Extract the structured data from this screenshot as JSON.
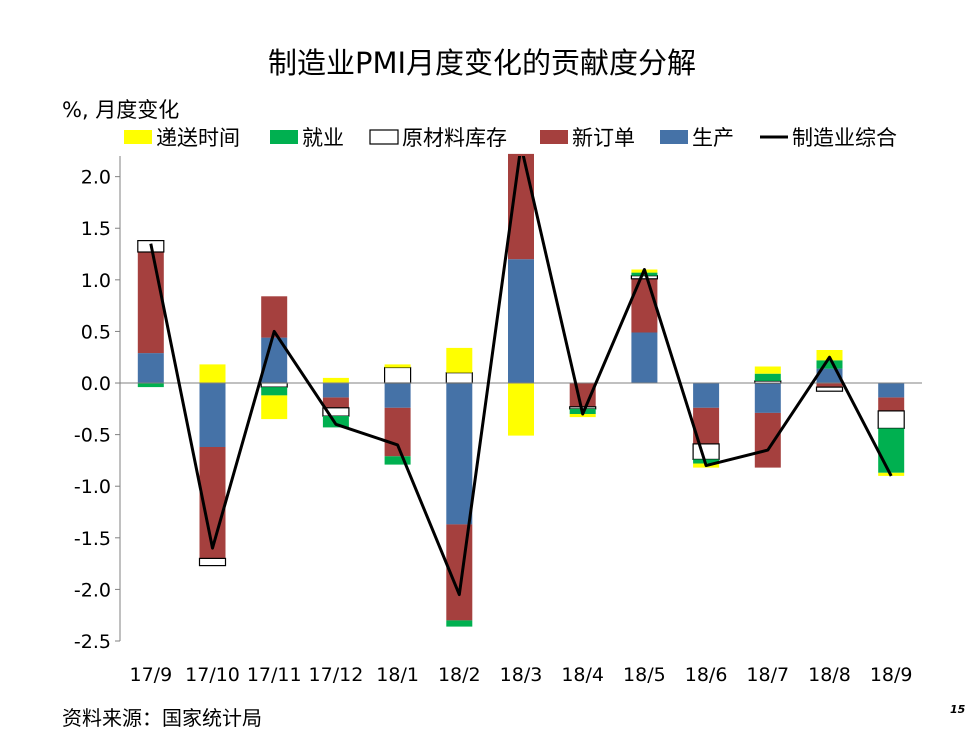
{
  "page": {
    "source": "资料来源：国家统计局",
    "page_number": "15"
  },
  "chart_data": {
    "type": "bar",
    "stacked": true,
    "title": "制造业PMI月度变化的贡献度分解",
    "ylabel": "%, 月度变化",
    "xlabel": "",
    "ylim": [
      -2.5,
      2.2
    ],
    "yticks": [
      "-2.5",
      "-2.0",
      "-1.5",
      "-1.0",
      "-0.5",
      "0.0",
      "0.5",
      "1.0",
      "1.5",
      "2.0"
    ],
    "ytick_values": [
      -2.5,
      -2.0,
      -1.5,
      -1.0,
      -0.5,
      0.0,
      0.5,
      1.0,
      1.5,
      2.0
    ],
    "grid": false,
    "legend_position": "top",
    "categories": [
      "17/9",
      "17/10",
      "17/11",
      "17/12",
      "18/1",
      "18/2",
      "18/3",
      "18/4",
      "18/5",
      "18/6",
      "18/7",
      "18/8",
      "18/9"
    ],
    "series": [
      {
        "name": "递送时间",
        "kind": "bar",
        "color": "#FFFF00",
        "values": [
          0.0,
          0.18,
          -0.23,
          0.05,
          0.03,
          0.24,
          -0.51,
          -0.03,
          0.03,
          -0.04,
          0.07,
          0.1,
          -0.03
        ]
      },
      {
        "name": "就业",
        "kind": "bar",
        "color": "#00B050",
        "values": [
          -0.04,
          0.0,
          -0.08,
          -0.11,
          -0.08,
          -0.06,
          0.0,
          -0.05,
          0.03,
          -0.04,
          0.07,
          0.08,
          -0.43
        ]
      },
      {
        "name": "原材料库存",
        "kind": "bar",
        "color": "#FFFFFF",
        "values": [
          0.11,
          -0.07,
          -0.04,
          -0.08,
          0.15,
          0.1,
          0.0,
          -0.02,
          0.03,
          -0.15,
          0.02,
          -0.04,
          -0.17
        ]
      },
      {
        "name": "新订单",
        "kind": "bar",
        "color": "#A5403E",
        "values": [
          0.98,
          -1.08,
          0.4,
          -0.1,
          -0.47,
          -0.93,
          1.02,
          -0.23,
          0.52,
          -0.35,
          -0.53,
          -0.04,
          -0.13
        ]
      },
      {
        "name": "生产",
        "kind": "bar",
        "color": "#4572A7",
        "values": [
          0.29,
          -0.62,
          0.44,
          -0.14,
          -0.24,
          -1.37,
          1.2,
          0.0,
          0.49,
          -0.24,
          -0.29,
          0.14,
          -0.14
        ]
      },
      {
        "name": "制造业综合",
        "kind": "line",
        "color": "#000000",
        "values": [
          1.35,
          -1.6,
          0.5,
          -0.4,
          -0.6,
          -2.05,
          2.3,
          -0.3,
          1.1,
          -0.8,
          -0.65,
          0.25,
          -0.9
        ]
      }
    ]
  }
}
